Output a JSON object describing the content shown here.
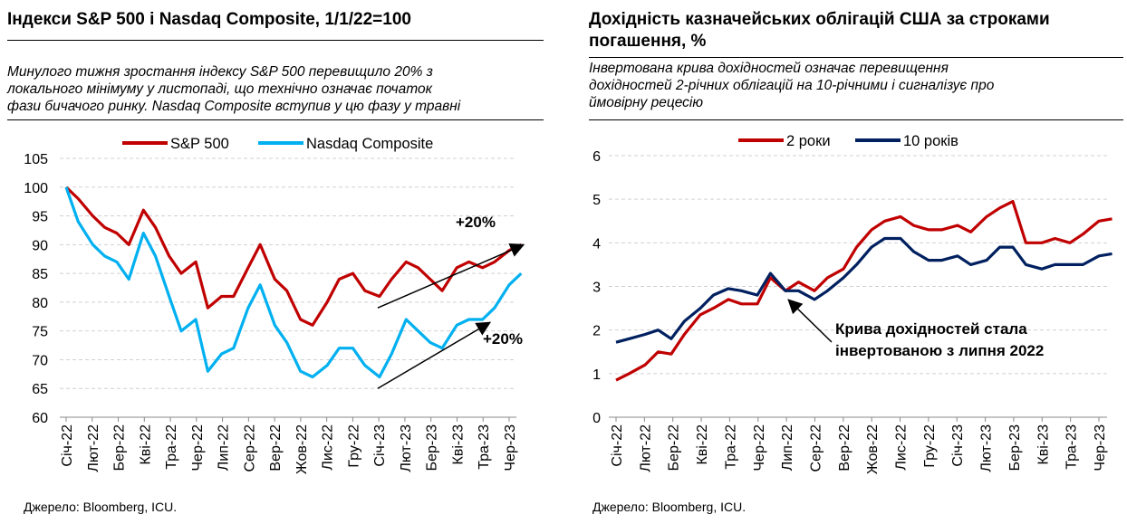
{
  "left": {
    "title": "Індекси S&P 500 і Nasdaq Composite, 1/1/22=100",
    "subtitle": [
      "Минулого тижня зростання індексу S&P 500 перевищило 20% з",
      "локального мінімуму у листопаді, що технічно означає початок",
      "фази бичачого ринку. Nasdaq Composite вступив у цю фазу у травні"
    ],
    "source": "Джерело: Bloomberg, ICU."
  },
  "right": {
    "title": [
      "Дохідність казначейських облігацій США за строками",
      "погашення, %"
    ],
    "subtitle": [
      "Інвертована крива дохідностей означає перевищення",
      "дохідностей 2-річних облігацій на 10-річними і сигналізує про",
      "ймовірну рецесію"
    ],
    "source": "Джерело: Bloomberg, ICU."
  },
  "chart_data": [
    {
      "type": "line",
      "title": "Індекси S&P 500 і Nasdaq Composite, 1/1/22=100",
      "ylim": [
        60,
        105
      ],
      "yticks": [
        60,
        65,
        70,
        75,
        80,
        85,
        90,
        95,
        100,
        105
      ],
      "grid": true,
      "legend": "top",
      "xtick_labels": [
        "Січ-22",
        "Лют-22",
        "Бер-22",
        "Кві-22",
        "Тра-22",
        "Чер-22",
        "Лип-22",
        "Сер-22",
        "Вер-22",
        "Жов-22",
        "Лис-22",
        "Гру-22",
        "Січ-23",
        "Лют-23",
        "Бер-23",
        "Кві-23",
        "Тра-23",
        "Чер-23"
      ],
      "x": [
        "2022-01-01",
        "2022-01-15",
        "2022-02-01",
        "2022-02-15",
        "2022-03-01",
        "2022-03-15",
        "2022-04-01",
        "2022-04-15",
        "2022-05-01",
        "2022-05-15",
        "2022-06-01",
        "2022-06-15",
        "2022-07-01",
        "2022-07-15",
        "2022-08-01",
        "2022-08-15",
        "2022-09-01",
        "2022-09-15",
        "2022-10-01",
        "2022-10-15",
        "2022-11-01",
        "2022-11-15",
        "2022-12-01",
        "2022-12-15",
        "2023-01-01",
        "2023-01-15",
        "2023-02-01",
        "2023-02-15",
        "2023-03-01",
        "2023-03-15",
        "2023-04-01",
        "2023-04-15",
        "2023-05-01",
        "2023-05-15",
        "2023-06-01",
        "2023-06-15"
      ],
      "series": [
        {
          "name": "S&P 500",
          "color": "#C00000",
          "values": [
            100,
            98,
            95,
            93,
            92,
            90,
            96,
            93,
            88,
            85,
            87,
            79,
            81,
            81,
            86,
            90,
            84,
            82,
            77,
            76,
            80,
            84,
            85,
            82,
            81,
            84,
            87,
            86,
            84,
            82,
            86,
            87,
            86,
            87,
            89,
            90
          ]
        },
        {
          "name": "Nasdaq Composite",
          "color": "#00B0F0",
          "values": [
            100,
            94,
            90,
            88,
            87,
            84,
            92,
            88,
            81,
            75,
            77,
            68,
            71,
            72,
            79,
            83,
            76,
            73,
            68,
            67,
            69,
            72,
            72,
            69,
            67,
            71,
            77,
            75,
            73,
            72,
            76,
            77,
            77,
            79,
            83,
            85
          ]
        }
      ],
      "annotations": [
        "+20%",
        "+20%"
      ]
    },
    {
      "type": "line",
      "title": "Дохідність казначейських облігацій США за строками погашення, %",
      "ylim": [
        0,
        6
      ],
      "yticks": [
        0,
        1,
        2,
        3,
        4,
        5,
        6
      ],
      "grid": true,
      "legend": "top",
      "xtick_labels": [
        "Січ-22",
        "Лют-22",
        "Бер-22",
        "Кві-22",
        "Тра-22",
        "Чер-22",
        "Лип-22",
        "Сер-22",
        "Вер-22",
        "Жов-22",
        "Лис-22",
        "Гру-22",
        "Січ-23",
        "Лют-23",
        "Бер-23",
        "Кві-23",
        "Тра-23",
        "Чер-23"
      ],
      "x": [
        "2022-01-01",
        "2022-01-15",
        "2022-02-01",
        "2022-02-15",
        "2022-03-01",
        "2022-03-15",
        "2022-04-01",
        "2022-04-15",
        "2022-05-01",
        "2022-05-15",
        "2022-06-01",
        "2022-06-15",
        "2022-07-01",
        "2022-07-15",
        "2022-08-01",
        "2022-08-15",
        "2022-09-01",
        "2022-09-15",
        "2022-10-01",
        "2022-10-15",
        "2022-11-01",
        "2022-11-15",
        "2022-12-01",
        "2022-12-15",
        "2023-01-01",
        "2023-01-15",
        "2023-02-01",
        "2023-02-15",
        "2023-03-01",
        "2023-03-15",
        "2023-04-01",
        "2023-04-15",
        "2023-05-01",
        "2023-05-15",
        "2023-06-01",
        "2023-06-15"
      ],
      "series": [
        {
          "name": "2 роки",
          "color": "#C00000",
          "values": [
            0.85,
            1.0,
            1.2,
            1.5,
            1.45,
            1.9,
            2.35,
            2.5,
            2.7,
            2.6,
            2.6,
            3.2,
            2.9,
            3.1,
            2.9,
            3.2,
            3.4,
            3.9,
            4.3,
            4.5,
            4.6,
            4.4,
            4.3,
            4.3,
            4.4,
            4.25,
            4.6,
            4.8,
            4.95,
            4.0,
            4.0,
            4.1,
            4.0,
            4.2,
            4.5,
            4.55
          ]
        },
        {
          "name": "10 років",
          "color": "#002060",
          "values": [
            1.72,
            1.8,
            1.9,
            2.0,
            1.8,
            2.2,
            2.5,
            2.8,
            2.95,
            2.9,
            2.8,
            3.3,
            2.9,
            2.9,
            2.7,
            2.9,
            3.2,
            3.5,
            3.9,
            4.1,
            4.1,
            3.8,
            3.6,
            3.6,
            3.7,
            3.5,
            3.6,
            3.9,
            3.9,
            3.5,
            3.4,
            3.5,
            3.5,
            3.5,
            3.7,
            3.75
          ]
        }
      ],
      "annotations": [
        "Крива дохідностей стала",
        "інвертованою з липня 2022"
      ]
    }
  ]
}
